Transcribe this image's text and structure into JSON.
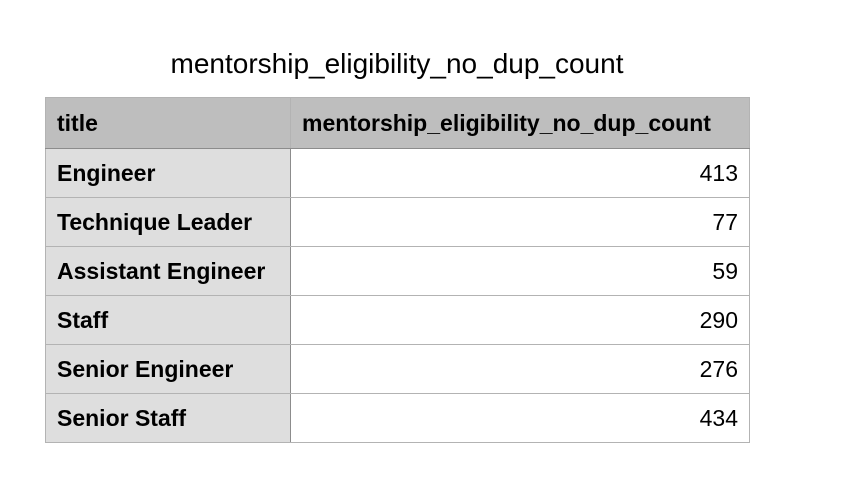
{
  "chart_data": {
    "type": "table",
    "title": "mentorship_eligibility_no_dup_count",
    "columns": [
      "title",
      "mentorship_eligibility_no_dup_count"
    ],
    "rows": [
      {
        "title": "Engineer",
        "count": "413"
      },
      {
        "title": "Technique Leader",
        "count": "77"
      },
      {
        "title": "Assistant Engineer",
        "count": "59"
      },
      {
        "title": "Staff",
        "count": "290"
      },
      {
        "title": "Senior Engineer",
        "count": "276"
      },
      {
        "title": "Senior Staff",
        "count": "434"
      }
    ]
  }
}
